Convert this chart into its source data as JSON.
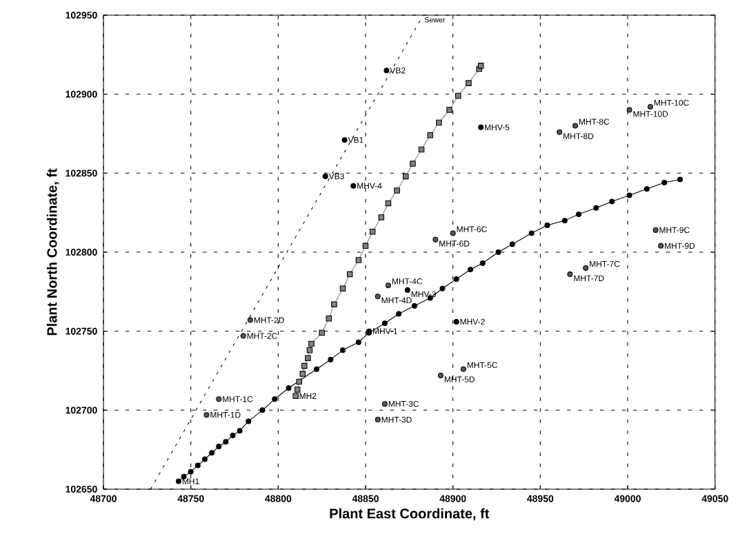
{
  "chart_data": {
    "type": "scatter",
    "xlabel": "Plant East Coordinate, ft",
    "ylabel": "Plant North Coordinate, ft",
    "xlim": [
      48700,
      49050
    ],
    "ylim": [
      102650,
      102950
    ],
    "xticks": [
      48700,
      48750,
      48800,
      48850,
      48900,
      48950,
      49000,
      49050
    ],
    "yticks": [
      102650,
      102700,
      102750,
      102800,
      102850,
      102900,
      102950
    ],
    "grid": true,
    "series": [
      {
        "marker": "circle",
        "color": "#000000",
        "x": [
          48862,
          48838,
          48827,
          48843,
          48916,
          48852,
          48902,
          48874
        ],
        "values": [
          102915,
          102871,
          102848,
          102842,
          102879,
          102750,
          102756,
          102776
        ]
      },
      {
        "marker": "circle",
        "color": "#555555",
        "x": [
          48766,
          48759,
          48784,
          48780,
          48861,
          48857,
          48863,
          48857,
          48906,
          48893,
          48900,
          48890,
          48976,
          48967,
          48970,
          48961,
          49016,
          49019,
          49013,
          49001
        ],
        "values": [
          102707,
          102697,
          102757,
          102747,
          102704,
          102694,
          102779,
          102772,
          102726,
          102722,
          102812,
          102808,
          102790,
          102786,
          102880,
          102876,
          102814,
          102804,
          102892,
          102890
        ]
      },
      {
        "type": "line",
        "marker": "circle",
        "color": "#000000",
        "x": [
          48743,
          48746,
          48750,
          48754,
          48758,
          48762,
          48766,
          48770,
          48774,
          48778,
          48783,
          48791,
          48798,
          48806,
          48822,
          48830,
          48837,
          48846,
          48852,
          48861,
          48869,
          48878,
          48887,
          48894,
          48902,
          48910,
          48917,
          48926,
          48934,
          48945,
          48954,
          48964,
          48972,
          48982,
          48991,
          49001,
          49011,
          49021,
          49030
        ],
        "values": [
          102655,
          102658,
          102661,
          102665,
          102669,
          102673,
          102677,
          102680,
          102684,
          102687,
          102693,
          102700,
          102707,
          102714,
          102726,
          102732,
          102738,
          102743,
          102749,
          102755,
          102761,
          102766,
          102771,
          102777,
          102783,
          102789,
          102793,
          102800,
          102805,
          102812,
          102817,
          102820,
          102824,
          102828,
          102832,
          102836,
          102840,
          102844,
          102846
        ]
      },
      {
        "type": "line",
        "marker": "square",
        "color": "#808080",
        "x": [
          48810,
          48811,
          48812,
          48814,
          48815,
          48817,
          48818,
          48819,
          48825,
          48829,
          48832,
          48837,
          48841,
          48846,
          48850,
          48854,
          48859,
          48863,
          48868,
          48873,
          48877,
          48882,
          48887,
          48892,
          48898,
          48903,
          48909,
          48915,
          48916
        ],
        "values": [
          102709,
          102713,
          102718,
          102723,
          102728,
          102733,
          102738,
          102742,
          102749,
          102758,
          102767,
          102777,
          102786,
          102795,
          102804,
          102813,
          102822,
          102831,
          102839,
          102848,
          102856,
          102865,
          102874,
          102882,
          102890,
          102899,
          102907,
          102916,
          102918
        ]
      },
      {
        "type": "line",
        "name": "Sewer",
        "marker": "none",
        "line_style": "dotted",
        "color": "#000000",
        "x": [
          48727,
          48883
        ],
        "values": [
          102650,
          102950
        ]
      }
    ],
    "annotations": [
      {
        "text": "VB2",
        "x": 48862,
        "y": 102915
      },
      {
        "text": "VB1",
        "x": 48838,
        "y": 102871
      },
      {
        "text": "VB3",
        "x": 48827,
        "y": 102848
      },
      {
        "text": "MHV-4",
        "x": 48843,
        "y": 102842
      },
      {
        "text": "MHV-5",
        "x": 48916,
        "y": 102879
      },
      {
        "text": "MHV-1",
        "x": 48852,
        "y": 102750
      },
      {
        "text": "MHV-2",
        "x": 48902,
        "y": 102756
      },
      {
        "text": "MHV-3",
        "x": 48874,
        "y": 102776
      },
      {
        "text": "MHT-1C",
        "x": 48766,
        "y": 102707
      },
      {
        "text": "MHT-1D",
        "x": 48759,
        "y": 102697
      },
      {
        "text": "MHT-2D",
        "x": 48784,
        "y": 102757
      },
      {
        "text": "MHT-2C",
        "x": 48780,
        "y": 102747
      },
      {
        "text": "MHT-3C",
        "x": 48861,
        "y": 102704
      },
      {
        "text": "MHT-3D",
        "x": 48857,
        "y": 102694
      },
      {
        "text": "MHT-4C",
        "x": 48863,
        "y": 102779
      },
      {
        "text": "MHT-4D",
        "x": 48857,
        "y": 102772
      },
      {
        "text": "MHT-5C",
        "x": 48906,
        "y": 102726
      },
      {
        "text": "MHT-5D",
        "x": 48893,
        "y": 102722
      },
      {
        "text": "MHT-6C",
        "x": 48900,
        "y": 102812
      },
      {
        "text": "MHT-6D",
        "x": 48890,
        "y": 102808
      },
      {
        "text": "MHT-7C",
        "x": 48976,
        "y": 102790
      },
      {
        "text": "MHT-7D",
        "x": 48967,
        "y": 102786
      },
      {
        "text": "MHT-8C",
        "x": 48970,
        "y": 102880
      },
      {
        "text": "MHT-8D",
        "x": 48961,
        "y": 102876
      },
      {
        "text": "MHT-9C",
        "x": 49016,
        "y": 102814
      },
      {
        "text": "MHT-9D",
        "x": 49019,
        "y": 102804
      },
      {
        "text": "MHT-10C",
        "x": 49013,
        "y": 102892
      },
      {
        "text": "MHT-10D",
        "x": 49001,
        "y": 102890
      },
      {
        "text": "MH1",
        "x": 48743,
        "y": 102655
      },
      {
        "text": "MH2",
        "x": 48810,
        "y": 102709
      }
    ]
  }
}
